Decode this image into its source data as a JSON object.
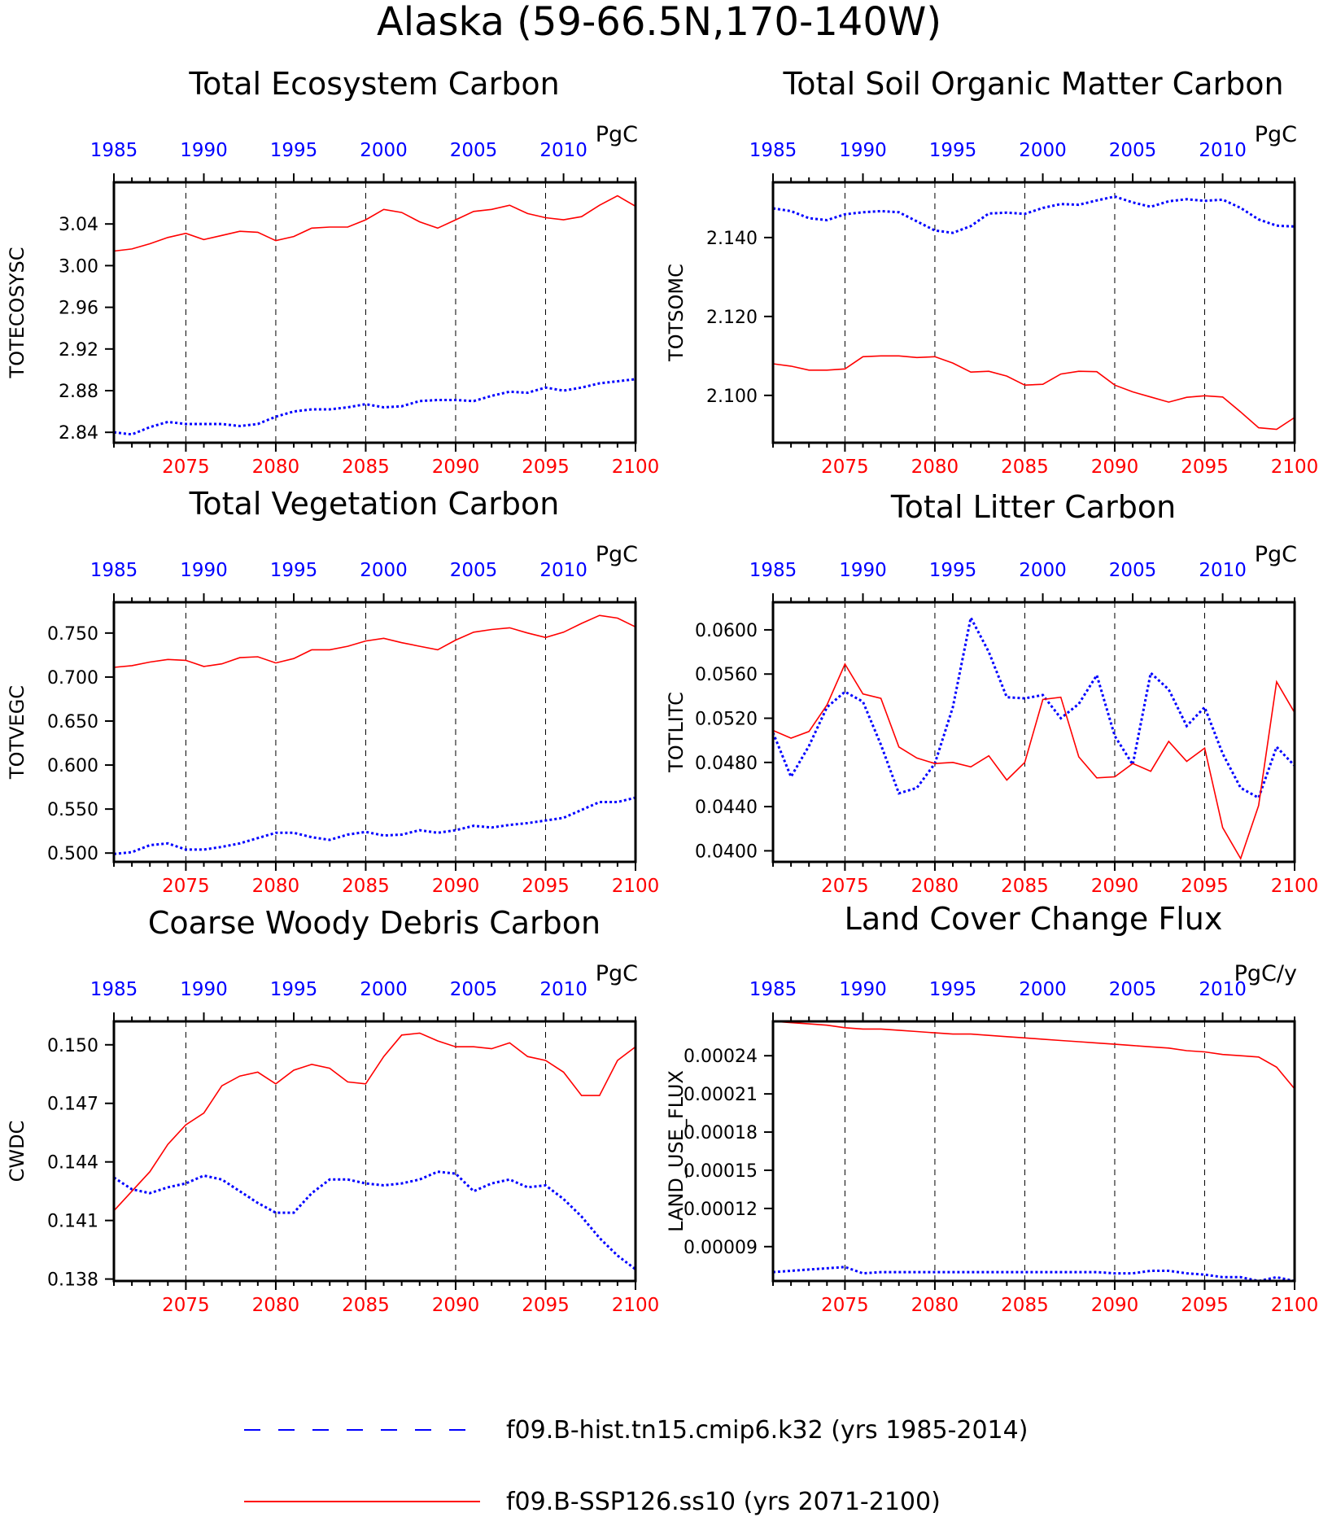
{
  "page_title": "Alaska (59-66.5N,170-140W)",
  "colors": {
    "hist": "#0000ff",
    "ssp": "#ff0000",
    "axis": "#000000"
  },
  "legend": {
    "hist_label": "f09.B-hist.tn15.cmip6.k32 (yrs 1985-2014)",
    "ssp_label": "f09.B-SSP126.ss10 (yrs 2071-2100)"
  },
  "chart_data": [
    {
      "type": "line",
      "title": "Total Ecosystem Carbon",
      "ylabel": "TOTECOSYSC",
      "units": "PgC",
      "ylim": [
        2.83,
        3.08
      ],
      "yticks": [
        2.84,
        2.88,
        2.92,
        2.96,
        3.0,
        3.04
      ],
      "ytick_labels": [
        "2.84",
        "2.88",
        "2.92",
        "2.96",
        "3.00",
        "3.04"
      ],
      "top_axis": {
        "range": [
          1985,
          2014
        ],
        "ticks": [
          1985,
          1990,
          1995,
          2000,
          2005,
          2010
        ]
      },
      "bottom_axis": {
        "range": [
          2071,
          2100
        ],
        "ticks": [
          2075,
          2080,
          2085,
          2090,
          2095,
          2100
        ]
      },
      "series": [
        {
          "values": [
            2.84,
            2.838,
            2.845,
            2.85,
            2.848,
            2.848,
            2.848,
            2.846,
            2.848,
            2.855,
            2.86,
            2.862,
            2.862,
            2.864,
            2.867,
            2.864,
            2.865,
            2.87,
            2.871,
            2.871,
            2.87,
            2.875,
            2.879,
            2.878,
            2.883,
            2.88,
            2.883,
            2.887,
            2.889,
            2.891
          ]
        },
        {
          "values": [
            3.014,
            3.016,
            3.021,
            3.027,
            3.031,
            3.025,
            3.029,
            3.033,
            3.032,
            3.024,
            3.028,
            3.036,
            3.037,
            3.037,
            3.044,
            3.054,
            3.051,
            3.042,
            3.036,
            3.044,
            3.052,
            3.054,
            3.058,
            3.05,
            3.046,
            3.044,
            3.047,
            3.058,
            3.067,
            3.057
          ]
        }
      ]
    },
    {
      "type": "line",
      "title": "Total Soil Organic Matter Carbon",
      "ylabel": "TOTSOMC",
      "units": "PgC",
      "ylim": [
        2.088,
        2.154
      ],
      "yticks": [
        2.1,
        2.12,
        2.14
      ],
      "ytick_labels": [
        "2.100",
        "2.120",
        "2.140"
      ],
      "top_axis": {
        "range": [
          1985,
          2014
        ],
        "ticks": [
          1985,
          1990,
          1995,
          2000,
          2005,
          2010
        ]
      },
      "bottom_axis": {
        "range": [
          2071,
          2100
        ],
        "ticks": [
          2075,
          2080,
          2085,
          2090,
          2095,
          2100
        ]
      },
      "series": [
        {
          "values": [
            2.1474,
            2.1467,
            2.1449,
            2.1444,
            2.1459,
            2.1464,
            2.1467,
            2.1464,
            2.1441,
            2.1418,
            2.1412,
            2.1429,
            2.1461,
            2.1463,
            2.146,
            2.1475,
            2.1485,
            2.1483,
            2.1494,
            2.1504,
            2.1489,
            2.1478,
            2.1492,
            2.1497,
            2.1493,
            2.1496,
            2.1475,
            2.1446,
            2.143,
            2.1428
          ]
        },
        {
          "values": [
            2.108,
            2.1074,
            2.1064,
            2.1064,
            2.1067,
            2.1098,
            2.11,
            2.11,
            2.1096,
            2.1098,
            2.1082,
            2.1059,
            2.1061,
            2.1049,
            2.1026,
            2.1028,
            2.1054,
            2.1061,
            2.106,
            2.1026,
            2.1009,
            2.0996,
            2.0983,
            2.0995,
            2.0999,
            2.0996,
            2.0958,
            2.0918,
            2.0914,
            2.0944
          ]
        }
      ]
    },
    {
      "type": "line",
      "title": "Total Vegetation Carbon",
      "ylabel": "TOTVEGC",
      "units": "PgC",
      "ylim": [
        0.49,
        0.785
      ],
      "yticks": [
        0.5,
        0.55,
        0.6,
        0.65,
        0.7,
        0.75
      ],
      "ytick_labels": [
        "0.500",
        "0.550",
        "0.600",
        "0.650",
        "0.700",
        "0.750"
      ],
      "top_axis": {
        "range": [
          1985,
          2014
        ],
        "ticks": [
          1985,
          1990,
          1995,
          2000,
          2005,
          2010
        ]
      },
      "bottom_axis": {
        "range": [
          2071,
          2100
        ],
        "ticks": [
          2075,
          2080,
          2085,
          2090,
          2095,
          2100
        ]
      },
      "series": [
        {
          "values": [
            0.499,
            0.501,
            0.509,
            0.511,
            0.504,
            0.504,
            0.507,
            0.511,
            0.517,
            0.523,
            0.523,
            0.518,
            0.515,
            0.521,
            0.524,
            0.52,
            0.521,
            0.526,
            0.523,
            0.526,
            0.531,
            0.529,
            0.532,
            0.534,
            0.537,
            0.54,
            0.549,
            0.558,
            0.558,
            0.563
          ]
        },
        {
          "values": [
            0.711,
            0.713,
            0.717,
            0.72,
            0.719,
            0.712,
            0.715,
            0.722,
            0.723,
            0.716,
            0.721,
            0.731,
            0.731,
            0.735,
            0.741,
            0.744,
            0.739,
            0.735,
            0.731,
            0.742,
            0.751,
            0.754,
            0.756,
            0.75,
            0.745,
            0.751,
            0.761,
            0.77,
            0.767,
            0.757
          ]
        }
      ]
    },
    {
      "type": "line",
      "title": "Total Litter Carbon",
      "ylabel": "TOTLITC",
      "units": "PgC",
      "ylim": [
        0.039,
        0.0625
      ],
      "yticks": [
        0.04,
        0.044,
        0.048,
        0.052,
        0.056,
        0.06
      ],
      "ytick_labels": [
        "0.0400",
        "0.0440",
        "0.0480",
        "0.0520",
        "0.0560",
        "0.0600"
      ],
      "top_axis": {
        "range": [
          1985,
          2014
        ],
        "ticks": [
          1985,
          1990,
          1995,
          2000,
          2005,
          2010
        ]
      },
      "bottom_axis": {
        "range": [
          2071,
          2100
        ],
        "ticks": [
          2075,
          2080,
          2085,
          2090,
          2095,
          2100
        ]
      },
      "series": [
        {
          "values": [
            0.0507,
            0.0467,
            0.0495,
            0.053,
            0.0544,
            0.0535,
            0.0496,
            0.0452,
            0.0457,
            0.0479,
            0.053,
            0.0611,
            0.058,
            0.0539,
            0.0538,
            0.0541,
            0.052,
            0.0533,
            0.0559,
            0.0504,
            0.0478,
            0.0561,
            0.0546,
            0.0513,
            0.053,
            0.0488,
            0.0457,
            0.0448,
            0.0494,
            0.0477
          ]
        },
        {
          "values": [
            0.0509,
            0.0502,
            0.0508,
            0.0532,
            0.0569,
            0.0542,
            0.0538,
            0.0494,
            0.0484,
            0.0479,
            0.048,
            0.0476,
            0.0486,
            0.0464,
            0.048,
            0.0537,
            0.0539,
            0.0485,
            0.0466,
            0.0467,
            0.0479,
            0.0472,
            0.0499,
            0.0481,
            0.0493,
            0.0421,
            0.0393,
            0.0441,
            0.0553,
            0.0525
          ]
        }
      ]
    },
    {
      "type": "line",
      "title": "Coarse Woody Debris Carbon",
      "ylabel": "CWDC",
      "units": "PgC",
      "ylim": [
        0.1379,
        0.1512
      ],
      "yticks": [
        0.138,
        0.141,
        0.144,
        0.147,
        0.15
      ],
      "ytick_labels": [
        "0.138",
        "0.141",
        "0.144",
        "0.147",
        "0.150"
      ],
      "top_axis": {
        "range": [
          1985,
          2014
        ],
        "ticks": [
          1985,
          1990,
          1995,
          2000,
          2005,
          2010
        ]
      },
      "bottom_axis": {
        "range": [
          2071,
          2100
        ],
        "ticks": [
          2075,
          2080,
          2085,
          2090,
          2095,
          2100
        ]
      },
      "series": [
        {
          "values": [
            0.1432,
            0.1426,
            0.1424,
            0.1427,
            0.1429,
            0.1433,
            0.1431,
            0.1425,
            0.1419,
            0.1414,
            0.1414,
            0.1424,
            0.1431,
            0.1431,
            0.1429,
            0.1428,
            0.1429,
            0.1431,
            0.1435,
            0.1434,
            0.1425,
            0.1429,
            0.1431,
            0.1427,
            0.1428,
            0.1421,
            0.1412,
            0.1401,
            0.1392,
            0.1385
          ]
        },
        {
          "values": [
            0.1415,
            0.1425,
            0.1435,
            0.1449,
            0.1459,
            0.1465,
            0.1479,
            0.1484,
            0.1486,
            0.148,
            0.1487,
            0.149,
            0.1488,
            0.1481,
            0.148,
            0.1494,
            0.1505,
            0.1506,
            0.1502,
            0.1499,
            0.1499,
            0.1498,
            0.1501,
            0.1494,
            0.1492,
            0.1486,
            0.1474,
            0.1474,
            0.1492,
            0.1499
          ]
        }
      ]
    },
    {
      "type": "line",
      "title": "Land Cover Change Flux",
      "ylabel": "LAND_USE_FLUX",
      "units": "PgC/y",
      "ylim": [
        6.3e-05,
        0.000267
      ],
      "yticks": [
        9e-05,
        0.00012,
        0.00015,
        0.00018,
        0.00021,
        0.00024
      ],
      "ytick_labels": [
        "0.00009",
        "0.00012",
        "0.00015",
        "0.00018",
        "0.00021",
        "0.00024"
      ],
      "top_axis": {
        "range": [
          1985,
          2014
        ],
        "ticks": [
          1985,
          1990,
          1995,
          2000,
          2005,
          2010
        ]
      },
      "bottom_axis": {
        "range": [
          2071,
          2100
        ],
        "ticks": [
          2075,
          2080,
          2085,
          2090,
          2095,
          2100
        ]
      },
      "series": [
        {
          "values": [
            7e-05,
            7.1e-05,
            7.2e-05,
            7.3e-05,
            7.4e-05,
            6.9e-05,
            7e-05,
            7e-05,
            7e-05,
            7e-05,
            7e-05,
            7e-05,
            7e-05,
            7e-05,
            7e-05,
            7e-05,
            7e-05,
            7e-05,
            7e-05,
            6.9e-05,
            6.9e-05,
            7.1e-05,
            7.1e-05,
            6.9e-05,
            6.8e-05,
            6.6e-05,
            6.6e-05,
            6.3e-05,
            6.6e-05,
            6.3e-05
          ]
        },
        {
          "values": [
            0.000267,
            0.000266,
            0.000265,
            0.000264,
            0.000262,
            0.000261,
            0.000261,
            0.00026,
            0.000259,
            0.000258,
            0.000257,
            0.000257,
            0.000256,
            0.000255,
            0.000254,
            0.000253,
            0.000252,
            0.000251,
            0.00025,
            0.000249,
            0.000248,
            0.000247,
            0.000246,
            0.000244,
            0.000243,
            0.000241,
            0.00024,
            0.000239,
            0.000231,
            0.000214
          ]
        }
      ]
    }
  ]
}
